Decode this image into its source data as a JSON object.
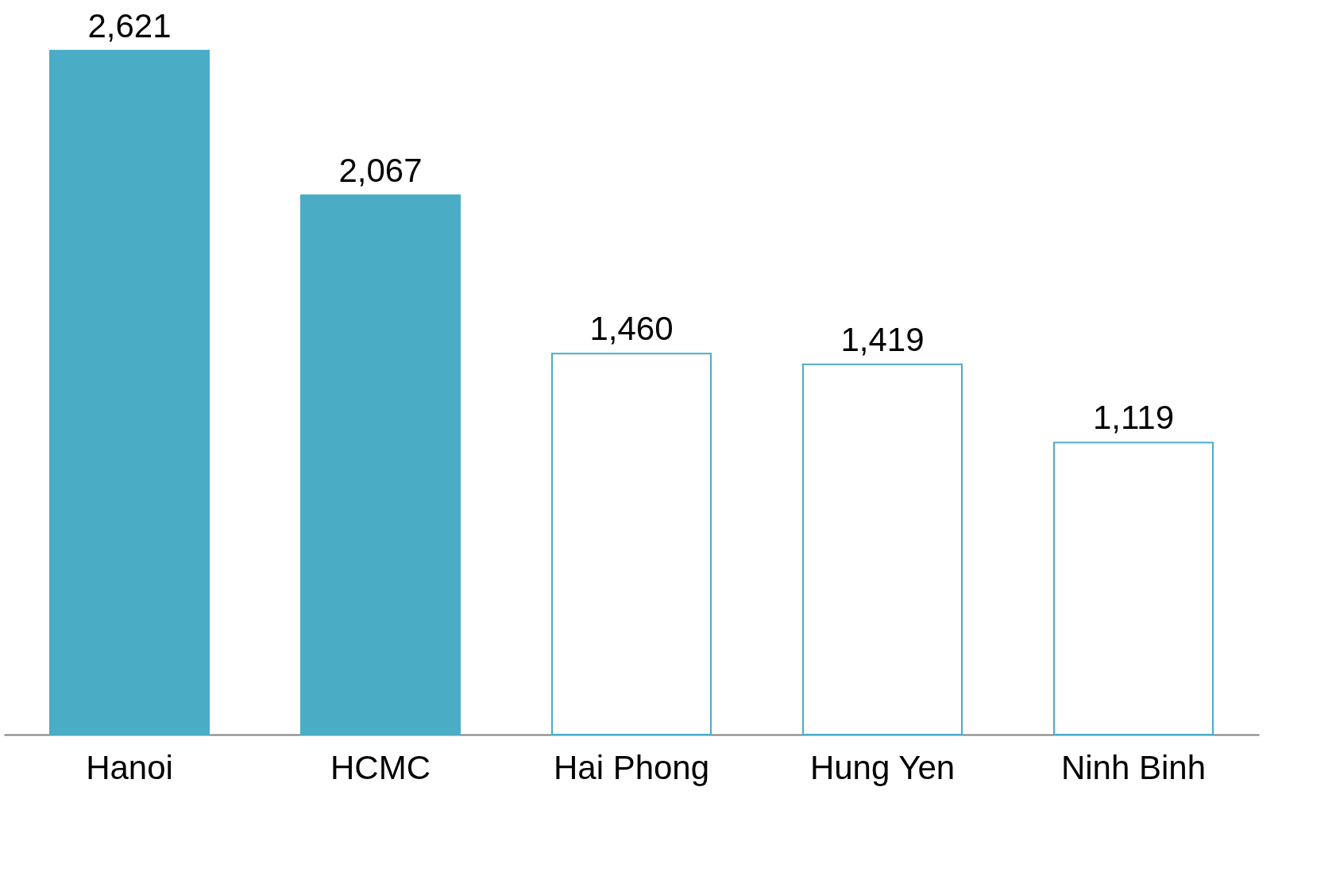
{
  "chart_data": {
    "type": "bar",
    "categories": [
      "Hanoi",
      "HCMC",
      "Hai Phong",
      "Hung Yen",
      "Ninh Binh"
    ],
    "values": [
      2621,
      2067,
      1460,
      1419,
      1119
    ],
    "colors": [
      "#4bacc6",
      "#4bacc6",
      "#ffffff",
      "#ffffff",
      "#ffffff"
    ],
    "value_labels": [
      "2,621",
      "2,067",
      "1,460",
      "1,419",
      "1,119"
    ]
  }
}
